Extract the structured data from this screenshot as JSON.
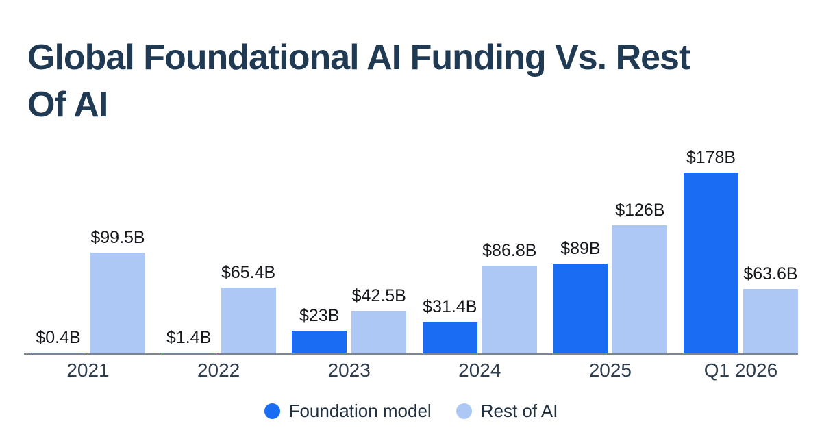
{
  "title": {
    "line1": "Global Foundational AI Funding Vs. Rest",
    "line2": "Of AI"
  },
  "legend": [
    {
      "label": "Foundation model",
      "color": "#1a6df2"
    },
    {
      "label": "Rest of AI",
      "color": "#adc8f5"
    }
  ],
  "colors": {
    "foundation_model": "#1a6df2",
    "rest_of_ai": "#adc8f5",
    "title_text": "#1f3a52",
    "value_label_text": "#15181d",
    "axis_line": "#7d8690",
    "background": "#ffffff"
  },
  "chart_data": {
    "type": "bar",
    "title": "Global Foundational AI Funding Vs. Rest Of AI",
    "categories": [
      "2021",
      "2022",
      "2023",
      "2024",
      "2025",
      "Q1 2026"
    ],
    "series": [
      {
        "name": "Foundation model",
        "color": "#1a6df2",
        "values": [
          0.4,
          1.4,
          23,
          31.4,
          89,
          178
        ],
        "labels": [
          "$0.4B",
          "$1.4B",
          "$23B",
          "$31.4B",
          "$89B",
          "$178B"
        ]
      },
      {
        "name": "Rest of AI",
        "color": "#adc8f5",
        "values": [
          99.5,
          65.4,
          42.5,
          86.8,
          126,
          63.6
        ],
        "labels": [
          "$99.5B",
          "$65.4B",
          "$42.5B",
          "$86.8B",
          "$126B",
          "$63.6B"
        ]
      }
    ],
    "xlabel": "",
    "ylabel": "",
    "ylim": [
      0,
      185
    ],
    "grid": false,
    "value_labels_shown": true,
    "legend_position": "bottom"
  }
}
